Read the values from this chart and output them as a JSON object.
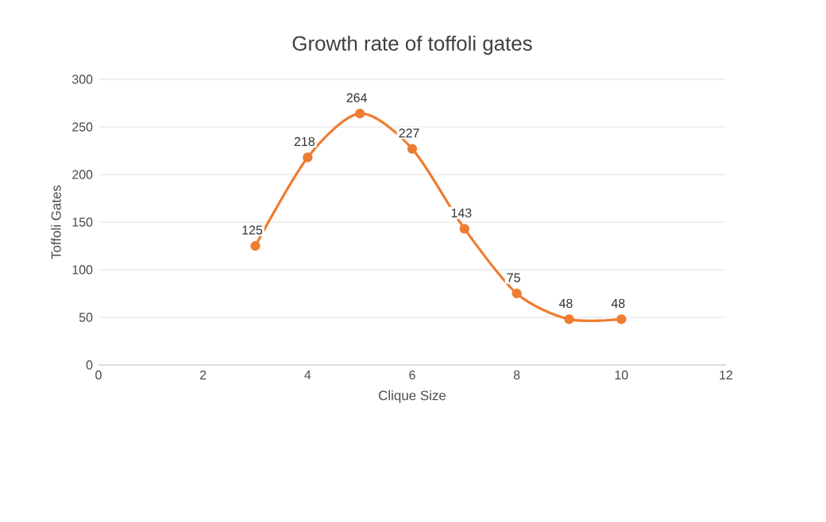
{
  "chart_data": {
    "type": "line",
    "title": "Growth rate of toffoli gates",
    "xlabel": "Clique Size",
    "ylabel": "Toffoli Gates",
    "x": [
      3,
      4,
      5,
      6,
      7,
      8,
      9,
      10
    ],
    "series": [
      {
        "color": "#ed7d31",
        "values": [
          125,
          218,
          264,
          227,
          143,
          75,
          48,
          48
        ]
      }
    ],
    "xlim": [
      0,
      12
    ],
    "xticks": [
      0,
      2,
      4,
      6,
      8,
      10,
      12
    ],
    "ylim": [
      0,
      300
    ],
    "yticks": [
      0,
      50,
      100,
      150,
      200,
      250,
      300
    ],
    "grid": "y",
    "marker": "circle",
    "line_style": "solid",
    "data_labels": true
  }
}
